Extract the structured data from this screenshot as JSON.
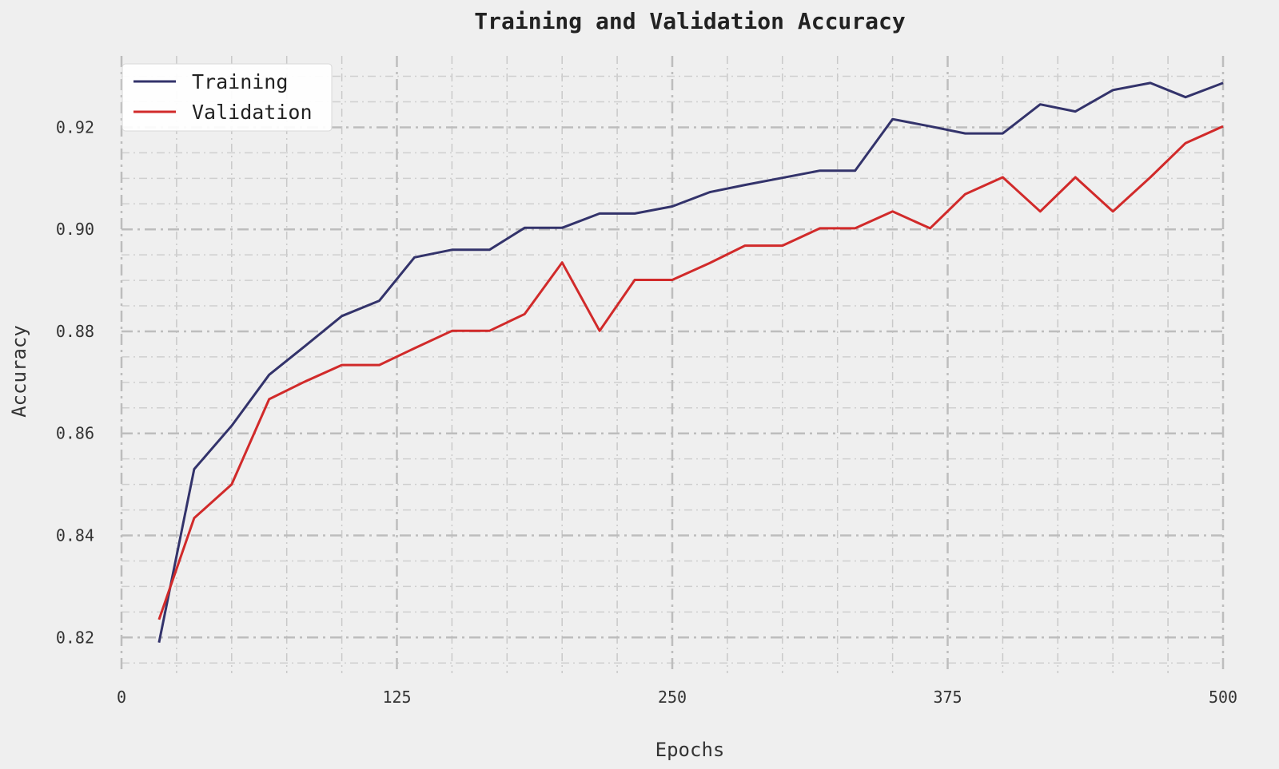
{
  "chart_data": {
    "type": "line",
    "title": "Training and Validation Accuracy",
    "xlabel": "Epochs",
    "ylabel": "Accuracy",
    "xlim": [
      0,
      500
    ],
    "ylim": [
      0.813,
      0.934
    ],
    "xticks": [
      0,
      125,
      250,
      375,
      500
    ],
    "xtick_labels": [
      "0",
      "125",
      "250",
      "375",
      "500"
    ],
    "yticks": [
      0.82,
      0.84,
      0.86,
      0.88,
      0.9,
      0.92
    ],
    "ytick_labels": [
      "0.82",
      "0.84",
      "0.86",
      "0.88",
      "0.90",
      "0.92"
    ],
    "grid": true,
    "legend_position": "top-left",
    "x": [
      17,
      33,
      50,
      67,
      83,
      100,
      117,
      133,
      150,
      167,
      183,
      200,
      217,
      233,
      250,
      267,
      283,
      300,
      317,
      333,
      350,
      367,
      383,
      400,
      417,
      433,
      450,
      467,
      483,
      500
    ],
    "series": [
      {
        "name": "Training",
        "color": "#33336b",
        "values": [
          0.819,
          0.853,
          0.8615,
          0.8715,
          0.877,
          0.883,
          0.886,
          0.8945,
          0.896,
          0.896,
          0.9003,
          0.9003,
          0.9031,
          0.9031,
          0.9045,
          0.9073,
          0.9087,
          0.9101,
          0.9115,
          0.9115,
          0.9216,
          0.9202,
          0.9188,
          0.9188,
          0.9245,
          0.9231,
          0.9273,
          0.9287,
          0.9259,
          0.9287
        ]
      },
      {
        "name": "Validation",
        "color": "#d12a2a",
        "values": [
          0.8235,
          0.8434,
          0.85,
          0.8667,
          0.8701,
          0.8734,
          0.8734,
          0.8767,
          0.8801,
          0.8801,
          0.8834,
          0.8935,
          0.8801,
          0.8901,
          0.8901,
          0.8934,
          0.8968,
          0.8968,
          0.9002,
          0.9002,
          0.9035,
          0.9002,
          0.9069,
          0.9102,
          0.9035,
          0.9102,
          0.9035,
          0.9102,
          0.9169,
          0.9202
        ]
      }
    ]
  }
}
